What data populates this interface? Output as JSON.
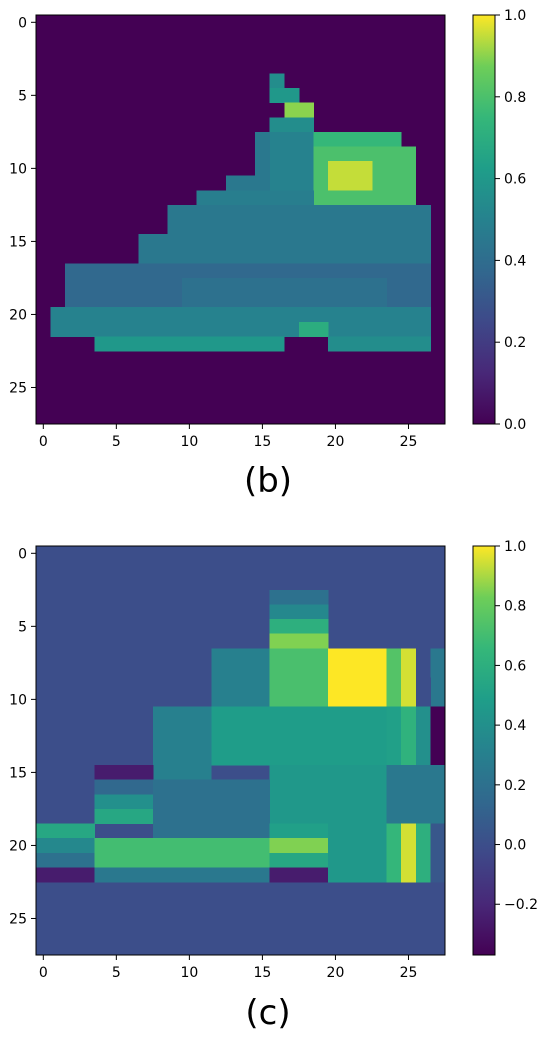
{
  "chart_data": [
    {
      "type": "heatmap",
      "caption": "(b)",
      "colormap": "viridis",
      "xlim": [
        -0.5,
        27.5
      ],
      "ylim": [
        -0.5,
        27.5
      ],
      "x_ticks": [
        "0",
        "5",
        "10",
        "15",
        "20",
        "25"
      ],
      "y_ticks": [
        "0",
        "5",
        "10",
        "15",
        "20",
        "25"
      ],
      "colorbar": {
        "vmin": 0.0,
        "vmax": 1.0,
        "ticks": [
          "0.0",
          "0.2",
          "0.4",
          "0.6",
          "0.8",
          "1.0"
        ]
      },
      "background_value": 0.0,
      "regions": [
        {
          "r0": 4,
          "r1": 5,
          "c0": 16,
          "c1": 17,
          "v": 0.55
        },
        {
          "r0": 5,
          "r1": 6,
          "c0": 16,
          "c1": 18,
          "v": 0.6
        },
        {
          "r0": 6,
          "r1": 7,
          "c0": 17,
          "c1": 19,
          "v": 0.9
        },
        {
          "r0": 7,
          "r1": 8,
          "c0": 16,
          "c1": 19,
          "v": 0.55
        },
        {
          "r0": 8,
          "r1": 12,
          "c0": 16,
          "c1": 19,
          "v": 0.5
        },
        {
          "r0": 8,
          "r1": 9,
          "c0": 19,
          "c1": 25,
          "v": 0.75
        },
        {
          "r0": 9,
          "r1": 13,
          "c0": 19,
          "c1": 26,
          "v": 0.8
        },
        {
          "r0": 10,
          "r1": 12,
          "c0": 20,
          "c1": 23,
          "v": 0.95
        },
        {
          "r0": 8,
          "r1": 12,
          "c0": 15,
          "c1": 16,
          "v": 0.45
        },
        {
          "r0": 11,
          "r1": 13,
          "c0": 13,
          "c1": 16,
          "v": 0.45
        },
        {
          "r0": 12,
          "r1": 14,
          "c0": 11,
          "c1": 19,
          "v": 0.48
        },
        {
          "r0": 13,
          "r1": 17,
          "c0": 9,
          "c1": 27,
          "v": 0.45
        },
        {
          "r0": 15,
          "r1": 18,
          "c0": 7,
          "c1": 10,
          "v": 0.45
        },
        {
          "r0": 17,
          "r1": 21,
          "c0": 2,
          "c1": 27,
          "v": 0.38
        },
        {
          "r0": 18,
          "r1": 20,
          "c0": 10,
          "c1": 24,
          "v": 0.42
        },
        {
          "r0": 20,
          "r1": 22,
          "c0": 1,
          "c1": 27,
          "v": 0.5
        },
        {
          "r0": 21,
          "r1": 22,
          "c0": 18,
          "c1": 20,
          "v": 0.7
        },
        {
          "r0": 22,
          "r1": 23,
          "c0": 4,
          "c1": 17,
          "v": 0.6
        },
        {
          "r0": 22,
          "r1": 23,
          "c0": 20,
          "c1": 27,
          "v": 0.55
        }
      ]
    },
    {
      "type": "heatmap",
      "caption": "(c)",
      "colormap": "viridis",
      "xlim": [
        -0.5,
        27.5
      ],
      "ylim": [
        -0.5,
        27.5
      ],
      "x_ticks": [
        "0",
        "5",
        "10",
        "15",
        "20",
        "25"
      ],
      "y_ticks": [
        "0",
        "5",
        "10",
        "15",
        "20",
        "25"
      ],
      "colorbar": {
        "vmin": -0.37,
        "vmax": 1.0,
        "ticks": [
          "−0.2",
          "0.0",
          "0.2",
          "0.4",
          "0.6",
          "0.8",
          "1.0"
        ]
      },
      "background_value": 0.0,
      "regions": [
        {
          "r0": 3,
          "r1": 4,
          "c0": 16,
          "c1": 20,
          "v": 0.2
        },
        {
          "r0": 4,
          "r1": 5,
          "c0": 16,
          "c1": 20,
          "v": 0.35
        },
        {
          "r0": 5,
          "r1": 6,
          "c0": 16,
          "c1": 20,
          "v": 0.6
        },
        {
          "r0": 6,
          "r1": 7,
          "c0": 16,
          "c1": 20,
          "v": 0.85
        },
        {
          "r0": 7,
          "r1": 11,
          "c0": 12,
          "c1": 16,
          "v": 0.3
        },
        {
          "r0": 7,
          "r1": 11,
          "c0": 16,
          "c1": 20,
          "v": 0.72
        },
        {
          "r0": 7,
          "r1": 11,
          "c0": 20,
          "c1": 24,
          "v": 1.0
        },
        {
          "r0": 7,
          "r1": 11,
          "c0": 24,
          "c1": 25,
          "v": 0.75
        },
        {
          "r0": 7,
          "r1": 11,
          "c0": 25,
          "c1": 26,
          "v": 0.95
        },
        {
          "r0": 7,
          "r1": 11,
          "c0": 27,
          "c1": 28,
          "v": 0.25
        },
        {
          "r0": 9,
          "r1": 11,
          "c0": 26,
          "c1": 27,
          "v": 0.0
        },
        {
          "r0": 11,
          "r1": 16,
          "c0": 8,
          "c1": 12,
          "v": 0.3
        },
        {
          "r0": 11,
          "r1": 15,
          "c0": 12,
          "c1": 24,
          "v": 0.48
        },
        {
          "r0": 11,
          "r1": 15,
          "c0": 24,
          "c1": 25,
          "v": 0.5
        },
        {
          "r0": 11,
          "r1": 15,
          "c0": 25,
          "c1": 26,
          "v": 0.62
        },
        {
          "r0": 11,
          "r1": 15,
          "c0": 26,
          "c1": 27,
          "v": 0.4
        },
        {
          "r0": 11,
          "r1": 15,
          "c0": 27,
          "c1": 28,
          "v": -0.37
        },
        {
          "r0": 15,
          "r1": 16,
          "c0": 4,
          "c1": 8,
          "v": -0.25
        },
        {
          "r0": 16,
          "r1": 17,
          "c0": 4,
          "c1": 8,
          "v": 0.15
        },
        {
          "r0": 17,
          "r1": 18,
          "c0": 4,
          "c1": 8,
          "v": 0.4
        },
        {
          "r0": 18,
          "r1": 19,
          "c0": 4,
          "c1": 8,
          "v": 0.55
        },
        {
          "r0": 15,
          "r1": 19,
          "c0": 16,
          "c1": 24,
          "v": 0.45
        },
        {
          "r0": 15,
          "r1": 19,
          "c0": 24,
          "c1": 28,
          "v": 0.25
        },
        {
          "r0": 16,
          "r1": 19,
          "c0": 8,
          "c1": 16,
          "v": 0.2
        },
        {
          "r0": 19,
          "r1": 20,
          "c0": 0,
          "c1": 4,
          "v": 0.55
        },
        {
          "r0": 20,
          "r1": 21,
          "c0": 0,
          "c1": 4,
          "v": 0.35
        },
        {
          "r0": 21,
          "r1": 22,
          "c0": 0,
          "c1": 4,
          "v": 0.2
        },
        {
          "r0": 22,
          "r1": 23,
          "c0": 0,
          "c1": 4,
          "v": -0.25
        },
        {
          "r0": 19,
          "r1": 20,
          "c0": 8,
          "c1": 16,
          "v": 0.2
        },
        {
          "r0": 20,
          "r1": 22,
          "c0": 4,
          "c1": 16,
          "v": 0.7
        },
        {
          "r0": 22,
          "r1": 23,
          "c0": 4,
          "c1": 16,
          "v": 0.25
        },
        {
          "r0": 19,
          "r1": 20,
          "c0": 16,
          "c1": 20,
          "v": 0.5
        },
        {
          "r0": 20,
          "r1": 21,
          "c0": 16,
          "c1": 20,
          "v": 0.85
        },
        {
          "r0": 21,
          "r1": 22,
          "c0": 16,
          "c1": 20,
          "v": 0.55
        },
        {
          "r0": 22,
          "r1": 23,
          "c0": 16,
          "c1": 20,
          "v": -0.25
        },
        {
          "r0": 19,
          "r1": 23,
          "c0": 20,
          "c1": 24,
          "v": 0.45
        },
        {
          "r0": 19,
          "r1": 23,
          "c0": 24,
          "c1": 25,
          "v": 0.65
        },
        {
          "r0": 19,
          "r1": 23,
          "c0": 25,
          "c1": 26,
          "v": 0.95
        },
        {
          "r0": 19,
          "r1": 23,
          "c0": 26,
          "c1": 27,
          "v": 0.6
        },
        {
          "r0": 19,
          "r1": 23,
          "c0": 27,
          "c1": 28,
          "v": 0.05
        }
      ]
    }
  ]
}
